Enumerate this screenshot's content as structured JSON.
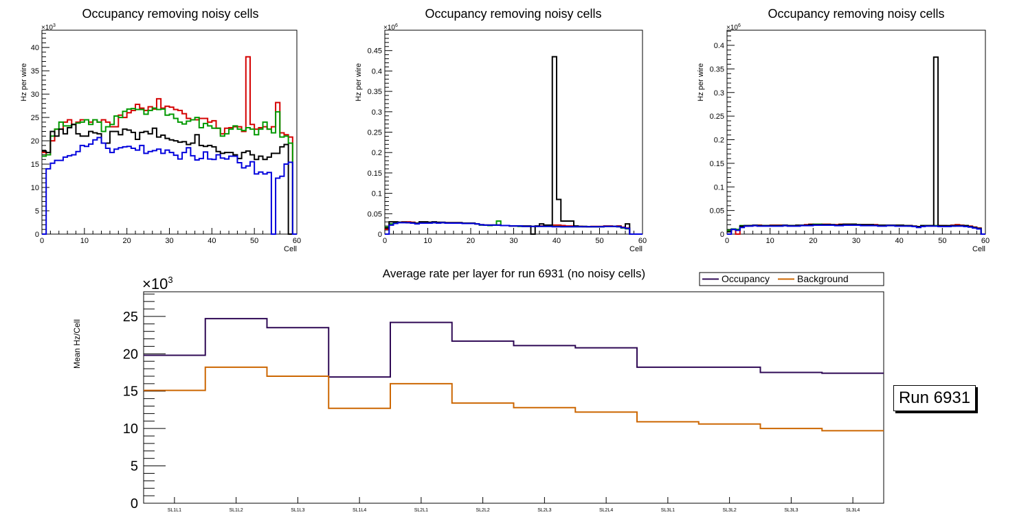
{
  "chart_data": [
    {
      "type": "histogram-step",
      "title": "Occupancy removing noisy cells",
      "xlabel": "Cell",
      "ylabel": "Hz per wire",
      "exponent_label": "×10",
      "exponent": "3",
      "xlim": [
        0,
        60
      ],
      "ylim": [
        0,
        43.7
      ],
      "y_major": 5,
      "y_minor": 1,
      "x_major": 10,
      "x_minor": 2,
      "y_tick_labels": [
        "0",
        "5",
        "10",
        "15",
        "20",
        "25",
        "30",
        "35",
        "40"
      ],
      "x_tick_labels": [
        "0",
        "10",
        "20",
        "30",
        "40",
        "50",
        "60"
      ],
      "series": [
        {
          "name": "red",
          "color": "#d40000",
          "values": [
            17.5,
            17,
            20,
            22.5,
            22.5,
            24,
            24.5,
            23.5,
            24,
            24.5,
            24.5,
            24,
            24.5,
            24,
            24.5,
            24,
            23,
            23,
            25.5,
            25,
            26,
            26.5,
            27.8,
            27,
            26.5,
            27.3,
            26.8,
            29,
            27,
            27.4,
            27.2,
            26.7,
            26.5,
            25.8,
            24.8,
            24.5,
            24.5,
            24.8,
            24.8,
            24,
            24.3,
            22.7,
            21.5,
            22.7,
            22.8,
            23,
            23,
            22,
            38,
            23.5,
            22.5,
            22.8,
            23,
            22.5,
            23,
            28.2,
            21.7,
            21.3,
            20.8,
            0
          ]
        },
        {
          "name": "green",
          "color": "#009900",
          "values": [
            16.7,
            17,
            21,
            22.5,
            24,
            23.2,
            23.2,
            23.5,
            23.8,
            24,
            24.5,
            23.5,
            24.5,
            24,
            22,
            23,
            23.5,
            25.3,
            25,
            26.3,
            26.8,
            26.9,
            26.7,
            26.7,
            25.7,
            26.5,
            27,
            26.7,
            26.8,
            25.5,
            25.7,
            24.8,
            24,
            23.6,
            24.2,
            24.5,
            25,
            22.8,
            23.7,
            23.2,
            22.7,
            22.7,
            21,
            21.5,
            22.5,
            23.2,
            22.5,
            22.2,
            22.8,
            22.5,
            21.3,
            22.5,
            24,
            22.5,
            21.7,
            26.2,
            20.8,
            21,
            19.5,
            0
          ]
        },
        {
          "name": "black",
          "color": "#000000",
          "values": [
            17.8,
            17.5,
            22,
            21,
            22.5,
            21.5,
            22.8,
            23.5,
            21.5,
            21,
            21,
            22,
            21.7,
            21.5,
            19.5,
            19.5,
            22,
            22,
            21.3,
            22.5,
            22.3,
            21.8,
            20.3,
            21.8,
            22,
            21.5,
            22.7,
            20.8,
            21.2,
            20.5,
            20.2,
            20,
            19.7,
            19.8,
            19.2,
            19.5,
            21.3,
            19,
            18.8,
            19,
            18.7,
            17.7,
            17.3,
            17.5,
            17.5,
            17,
            16.2,
            17.5,
            17.8,
            17,
            16,
            16.7,
            16,
            16.5,
            17.3,
            17.3,
            18.7,
            19.2,
            0,
            0
          ]
        },
        {
          "name": "blue",
          "color": "#0000dd",
          "values": [
            0,
            14,
            15.2,
            15.8,
            15.8,
            16.5,
            16.8,
            17,
            17.7,
            19,
            18.8,
            19.3,
            20.2,
            20.7,
            19.5,
            18.4,
            17.5,
            18.2,
            18.5,
            18.7,
            18.8,
            18.4,
            18,
            19,
            17.3,
            17.7,
            17.9,
            18.2,
            17.3,
            18,
            17.5,
            16.9,
            16.1,
            17.5,
            18.5,
            16.8,
            15.9,
            16.2,
            17.6,
            16.1,
            16,
            17,
            16.3,
            16.1,
            16.7,
            16.7,
            15.3,
            14.2,
            14.6,
            15.5,
            12.9,
            13.3,
            12.9,
            13.2,
            0,
            12,
            12.4,
            15,
            15.4,
            0
          ]
        }
      ]
    },
    {
      "type": "histogram-step",
      "title": "Occupancy removing noisy cells",
      "xlabel": "Cell",
      "ylabel": "Hz per wire",
      "exponent_label": "×10",
      "exponent": "6",
      "xlim": [
        0,
        60
      ],
      "ylim": [
        0,
        0.5
      ],
      "y_major": 0.05,
      "y_minor": 0.01,
      "x_major": 10,
      "x_minor": 2,
      "y_tick_labels": [
        "0",
        "0.05",
        "0.1",
        "0.15",
        "0.2",
        "0.25",
        "0.3",
        "0.35",
        "0.4",
        "0.45"
      ],
      "x_tick_labels": [
        "0",
        "10",
        "20",
        "30",
        "40",
        "50",
        "60"
      ],
      "series": [
        {
          "name": "red",
          "color": "#d40000",
          "values": [
            0.012,
            0.024,
            0.028,
            0.029,
            0.03,
            0.03,
            0.029,
            0.026,
            0.028,
            0.028,
            0.028,
            0.029,
            0.028,
            0.028,
            0.028,
            0.028,
            0.028,
            0.028,
            0.027,
            0.027,
            0.026,
            0.025,
            0.023,
            0.022,
            0.022,
            0.022,
            0.022,
            0.021,
            0.021,
            0.02,
            0.02,
            0.02,
            0.019,
            0.019,
            0.019,
            0.019,
            0.02,
            0.02,
            0.021,
            0.022,
            0.022,
            0.021,
            0.02,
            0.02,
            0.019,
            0.019,
            0.018,
            0.018,
            0.019,
            0.019,
            0.019,
            0.02,
            0.02,
            0.019,
            0.02,
            0.017,
            0.015,
            0,
            0,
            0
          ]
        },
        {
          "name": "green",
          "color": "#009900",
          "values": [
            0.017,
            0.025,
            0.028,
            0.029,
            0.029,
            0.028,
            0.027,
            0.026,
            0.027,
            0.027,
            0.027,
            0.028,
            0.027,
            0.028,
            0.027,
            0.027,
            0.027,
            0.027,
            0.026,
            0.026,
            0.026,
            0.025,
            0.022,
            0.022,
            0.021,
            0.022,
            0.032,
            0.021,
            0.021,
            0.02,
            0.02,
            0.019,
            0.019,
            0.019,
            0.019,
            0.019,
            0.019,
            0.019,
            0.019,
            0.019,
            0.019,
            0.018,
            0.018,
            0.018,
            0.018,
            0.018,
            0.018,
            0.018,
            0.018,
            0.018,
            0.018,
            0.019,
            0.019,
            0.019,
            0.018,
            0.015,
            0.013,
            0,
            0,
            0
          ]
        },
        {
          "name": "black",
          "color": "#000000",
          "values": [
            0.015,
            0.03,
            0.03,
            0.029,
            0.029,
            0.028,
            0.028,
            0.027,
            0.03,
            0.03,
            0.029,
            0.03,
            0.029,
            0.029,
            0.028,
            0.028,
            0.028,
            0.028,
            0.027,
            0.027,
            0.027,
            0.025,
            0.023,
            0.022,
            0.022,
            0.022,
            0.022,
            0.021,
            0.021,
            0.02,
            0.02,
            0.02,
            0.02,
            0.02,
            0,
            0.02,
            0.025,
            0.022,
            0.022,
            0.435,
            0.085,
            0.032,
            0.032,
            0.032,
            0.02,
            0.019,
            0.019,
            0.018,
            0.018,
            0.018,
            0.018,
            0.019,
            0.019,
            0.019,
            0.019,
            0.016,
            0.025,
            0,
            0,
            0
          ]
        },
        {
          "name": "blue",
          "color": "#0000dd",
          "values": [
            0,
            0.022,
            0.026,
            0.028,
            0.028,
            0.028,
            0.027,
            0.025,
            0.027,
            0.027,
            0.027,
            0.028,
            0.027,
            0.028,
            0.027,
            0.027,
            0.027,
            0.027,
            0.026,
            0.026,
            0.026,
            0.025,
            0.023,
            0.022,
            0.022,
            0.022,
            0.022,
            0.021,
            0.021,
            0.02,
            0.02,
            0.02,
            0.019,
            0.019,
            0.019,
            0.019,
            0.019,
            0.019,
            0.019,
            0.018,
            0.018,
            0.018,
            0.018,
            0.018,
            0.018,
            0.018,
            0.018,
            0.018,
            0.018,
            0.018,
            0.018,
            0.019,
            0.019,
            0.019,
            0.018,
            0.016,
            0.014,
            0,
            0,
            0
          ]
        }
      ]
    },
    {
      "type": "histogram-step",
      "title": "Occupancy removing noisy cells",
      "xlabel": "Cell",
      "ylabel": "Hz per wire",
      "exponent_label": "×10",
      "exponent": "6",
      "xlim": [
        0,
        60
      ],
      "ylim": [
        0,
        0.432
      ],
      "y_major": 0.05,
      "y_minor": 0.01,
      "x_major": 10,
      "x_minor": 2,
      "y_tick_labels": [
        "0",
        "0.05",
        "0.1",
        "0.15",
        "0.2",
        "0.25",
        "0.3",
        "0.35",
        "0.4"
      ],
      "x_tick_labels": [
        "0",
        "10",
        "20",
        "30",
        "40",
        "50",
        "60"
      ],
      "series": [
        {
          "name": "red",
          "color": "#d40000",
          "values": [
            0.006,
            0.01,
            0,
            0.015,
            0.017,
            0.018,
            0.018,
            0.019,
            0.018,
            0.018,
            0.019,
            0.019,
            0.019,
            0.018,
            0.018,
            0.018,
            0.019,
            0.019,
            0.02,
            0.021,
            0.02,
            0.02,
            0.021,
            0.021,
            0.02,
            0.02,
            0.021,
            0.021,
            0.021,
            0.021,
            0.02,
            0.02,
            0.02,
            0.02,
            0.02,
            0.019,
            0.019,
            0.019,
            0.019,
            0.019,
            0.018,
            0.018,
            0.018,
            0.017,
            0.016,
            0.017,
            0.018,
            0.018,
            0.018,
            0.018,
            0.018,
            0.017,
            0.019,
            0.02,
            0.019,
            0.018,
            0.017,
            0.015,
            0.013,
            0
          ]
        },
        {
          "name": "green",
          "color": "#009900",
          "values": [
            0.008,
            0.011,
            0.01,
            0.018,
            0.018,
            0.018,
            0.019,
            0.018,
            0.018,
            0.018,
            0.018,
            0.018,
            0.018,
            0.018,
            0.018,
            0.018,
            0.018,
            0.019,
            0.019,
            0.02,
            0.021,
            0.021,
            0.02,
            0.02,
            0.019,
            0.019,
            0.02,
            0.02,
            0.02,
            0.021,
            0.02,
            0.019,
            0.019,
            0.019,
            0.019,
            0.018,
            0.018,
            0.018,
            0.018,
            0.018,
            0.018,
            0.018,
            0.017,
            0.016,
            0.016,
            0.018,
            0.018,
            0.018,
            0.018,
            0.017,
            0.016,
            0.016,
            0.017,
            0.018,
            0.018,
            0.018,
            0.016,
            0.014,
            0.012,
            0
          ]
        },
        {
          "name": "black",
          "color": "#000000",
          "values": [
            0.005,
            0.01,
            0.008,
            0.017,
            0.018,
            0.018,
            0.019,
            0.018,
            0.018,
            0.018,
            0.018,
            0.018,
            0.018,
            0.019,
            0.018,
            0.018,
            0.019,
            0.019,
            0.019,
            0.02,
            0.02,
            0.02,
            0.02,
            0.02,
            0.02,
            0.019,
            0.02,
            0.021,
            0.021,
            0.021,
            0.02,
            0.02,
            0.02,
            0.02,
            0.019,
            0.019,
            0.019,
            0.019,
            0.019,
            0.019,
            0.019,
            0.018,
            0.018,
            0.017,
            0.016,
            0.018,
            0.018,
            0.018,
            0.375,
            0.018,
            0.018,
            0.018,
            0.018,
            0.018,
            0.018,
            0.018,
            0.016,
            0.014,
            0.012,
            0
          ]
        },
        {
          "name": "blue",
          "color": "#0000dd",
          "values": [
            0,
            0.01,
            0.008,
            0.014,
            0.017,
            0.017,
            0.018,
            0.017,
            0.017,
            0.017,
            0.017,
            0.017,
            0.017,
            0.018,
            0.017,
            0.017,
            0.017,
            0.018,
            0.018,
            0.018,
            0.019,
            0.019,
            0.019,
            0.019,
            0.019,
            0.018,
            0.018,
            0.019,
            0.019,
            0.019,
            0.019,
            0.018,
            0.018,
            0.018,
            0.018,
            0.017,
            0.017,
            0.018,
            0.018,
            0.017,
            0.017,
            0.017,
            0.017,
            0.016,
            0.014,
            0.016,
            0.017,
            0.017,
            0.017,
            0.016,
            0.016,
            0.016,
            0.017,
            0.017,
            0.017,
            0.016,
            0.015,
            0.013,
            0.011,
            0
          ]
        }
      ]
    },
    {
      "type": "histogram-step",
      "title": "Average rate per layer for run 6931 (no noisy cells)",
      "xlabel": "",
      "ylabel": "Mean Hz/Cell",
      "exponent_label": "×10",
      "exponent": "3",
      "ylim": [
        0,
        28.3
      ],
      "y_major": 5,
      "y_minor": 1,
      "y_tick_labels": [
        "0",
        "5",
        "10",
        "15",
        "20",
        "25"
      ],
      "categories": [
        "SL1L1",
        "SL1L2",
        "SL1L3",
        "SL1L4",
        "SL2L1",
        "SL2L2",
        "SL2L3",
        "SL2L4",
        "SL3L1",
        "SL3L2",
        "SL3L3",
        "SL3L4"
      ],
      "legend_position": "top-right",
      "series": [
        {
          "name": "Occupancy",
          "color": "#2e0854",
          "values": [
            19.8,
            24.7,
            23.5,
            16.9,
            24.2,
            21.7,
            21.1,
            20.8,
            18.2,
            18.2,
            17.5,
            17.4
          ]
        },
        {
          "name": "Background",
          "color": "#cc6600",
          "values": [
            15.1,
            18.2,
            17.0,
            12.7,
            16.0,
            13.4,
            12.8,
            12.2,
            10.9,
            10.6,
            10.0,
            9.7
          ]
        }
      ]
    }
  ],
  "run_label": "Run 6931"
}
